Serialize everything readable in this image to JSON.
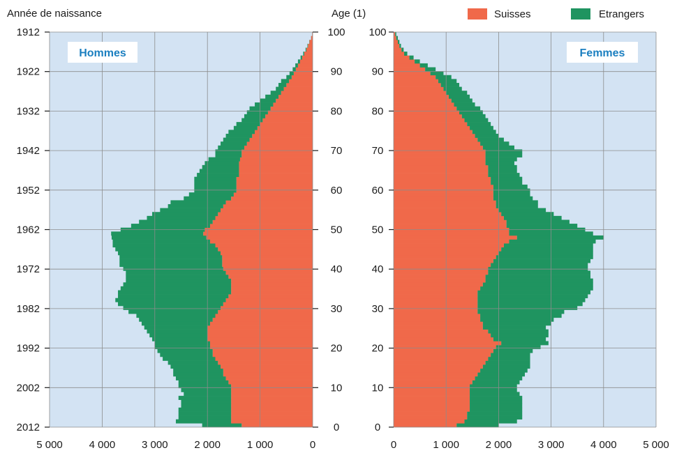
{
  "chart_data": {
    "type": "bar",
    "orientation": "horizontal-pyramid",
    "y_axis_left_label": "Année de naissance",
    "y_axis_right_label": "Age (1)",
    "legend": [
      {
        "name": "Suisses",
        "color": "#f0694a"
      },
      {
        "name": "Etrangers",
        "color": "#1f9460"
      }
    ],
    "legend_position": "top-right",
    "grid": true,
    "panels": [
      {
        "id": "men",
        "title": "Hommes",
        "direction": "left",
        "xlim": [
          5000,
          0
        ],
        "xticks": [
          "5 000",
          "4 000",
          "3 000",
          "2 000",
          "1 000",
          "0"
        ]
      },
      {
        "id": "women",
        "title": "Femmes",
        "direction": "right",
        "xlim": [
          0,
          5000
        ],
        "xticks": [
          "0",
          "1 000",
          "2 000",
          "3 000",
          "4 000",
          "5 000"
        ]
      }
    ],
    "birth_year_ticks": [
      "1912",
      "1922",
      "1932",
      "1942",
      "1952",
      "1962",
      "1972",
      "1982",
      "1992",
      "2002",
      "2012"
    ],
    "age_ticks": [
      "100",
      "90",
      "80",
      "70",
      "60",
      "50",
      "40",
      "30",
      "20",
      "10",
      "0"
    ],
    "ages": [
      0,
      100
    ],
    "series": [
      {
        "name": "Suisses",
        "panel": "men",
        "values": [
          1350,
          1550,
          1550,
          1550,
          1550,
          1550,
          1550,
          1550,
          1550,
          1550,
          1550,
          1600,
          1650,
          1700,
          1700,
          1750,
          1800,
          1850,
          1900,
          1900,
          1950,
          1950,
          2000,
          2000,
          2000,
          2000,
          1950,
          1900,
          1850,
          1800,
          1750,
          1700,
          1650,
          1600,
          1550,
          1550,
          1550,
          1550,
          1600,
          1650,
          1700,
          1720,
          1720,
          1720,
          1750,
          1800,
          1850,
          1950,
          2020,
          2080,
          2050,
          1950,
          1900,
          1850,
          1800,
          1750,
          1700,
          1650,
          1550,
          1500,
          1450,
          1450,
          1450,
          1450,
          1400,
          1400,
          1400,
          1400,
          1380,
          1350,
          1350,
          1300,
          1250,
          1200,
          1150,
          1100,
          1050,
          1000,
          950,
          900,
          850,
          800,
          750,
          700,
          650,
          600,
          550,
          500,
          450,
          400,
          360,
          320,
          280,
          240,
          200,
          160,
          120,
          90,
          60,
          30,
          10
        ]
      },
      {
        "name": "Etrangers",
        "panel": "men",
        "values": [
          750,
          1050,
          1000,
          1000,
          1000,
          950,
          950,
          1000,
          900,
          950,
          1000,
          950,
          950,
          950,
          950,
          950,
          950,
          1000,
          1000,
          1050,
          1050,
          1050,
          1050,
          1100,
          1150,
          1200,
          1300,
          1400,
          1500,
          1700,
          1850,
          2000,
          2100,
          2100,
          2150,
          2100,
          2050,
          2000,
          1950,
          1900,
          1900,
          1950,
          1950,
          1950,
          1950,
          1950,
          1950,
          1850,
          1800,
          1750,
          1600,
          1500,
          1400,
          1300,
          1250,
          1150,
          1050,
          1050,
          900,
          850,
          800,
          800,
          800,
          800,
          800,
          750,
          700,
          650,
          600,
          500,
          500,
          500,
          500,
          500,
          500,
          500,
          450,
          450,
          400,
          400,
          400,
          400,
          350,
          300,
          250,
          200,
          150,
          150,
          150,
          100,
          80,
          60,
          50,
          40,
          30,
          20,
          15,
          10,
          5,
          2,
          1
        ]
      },
      {
        "name": "Suisses",
        "panel": "women",
        "values": [
          1200,
          1350,
          1400,
          1400,
          1450,
          1450,
          1450,
          1450,
          1450,
          1450,
          1450,
          1500,
          1550,
          1600,
          1650,
          1700,
          1750,
          1800,
          1850,
          1900,
          1950,
          2050,
          1900,
          1850,
          1800,
          1700,
          1700,
          1650,
          1650,
          1600,
          1600,
          1600,
          1600,
          1600,
          1600,
          1650,
          1700,
          1750,
          1750,
          1800,
          1800,
          1850,
          1900,
          1950,
          2000,
          2050,
          2100,
          2200,
          2350,
          2200,
          2200,
          2150,
          2150,
          2100,
          2050,
          2000,
          1950,
          1950,
          1900,
          1900,
          1900,
          1900,
          1850,
          1850,
          1800,
          1800,
          1800,
          1750,
          1750,
          1750,
          1750,
          1700,
          1650,
          1600,
          1550,
          1500,
          1450,
          1400,
          1350,
          1300,
          1250,
          1200,
          1150,
          1100,
          1050,
          1000,
          950,
          900,
          850,
          800,
          700,
          600,
          500,
          400,
          300,
          200,
          150,
          110,
          80,
          50,
          30
        ]
      },
      {
        "name": "Etrangers",
        "panel": "women",
        "values": [
          800,
          1000,
          1050,
          1050,
          1000,
          1000,
          1000,
          1000,
          950,
          900,
          900,
          900,
          900,
          900,
          900,
          900,
          850,
          800,
          750,
          750,
          850,
          900,
          1000,
          1100,
          1150,
          1200,
          1300,
          1400,
          1550,
          1650,
          1900,
          2000,
          2050,
          2100,
          2150,
          2150,
          2100,
          2050,
          2000,
          1950,
          1900,
          1850,
          1850,
          1850,
          1800,
          1750,
          1700,
          1650,
          1650,
          1600,
          1450,
          1350,
          1200,
          1100,
          1000,
          900,
          800,
          800,
          750,
          700,
          700,
          650,
          600,
          600,
          600,
          550,
          550,
          550,
          600,
          700,
          700,
          600,
          550,
          500,
          450,
          450,
          450,
          450,
          450,
          450,
          450,
          450,
          400,
          400,
          400,
          400,
          350,
          350,
          350,
          300,
          250,
          200,
          150,
          100,
          80,
          60,
          40,
          30,
          30,
          30,
          20
        ]
      }
    ]
  }
}
